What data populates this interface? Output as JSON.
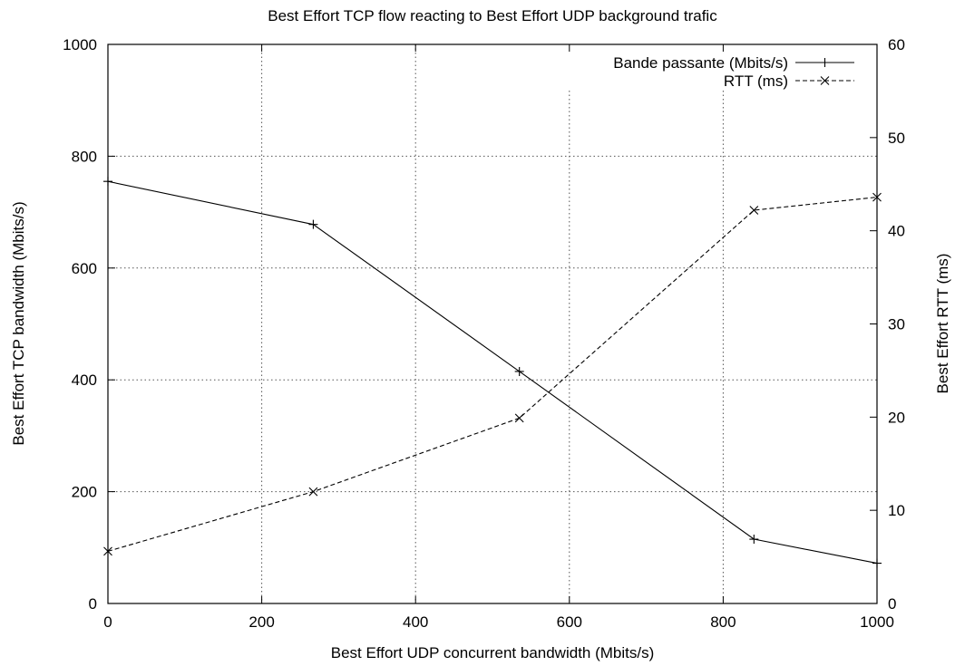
{
  "chart_data": {
    "type": "line",
    "title": "Best Effort TCP flow reacting to Best Effort UDP background trafic",
    "xlabel": "Best Effort UDP concurrent bandwidth (Mbits/s)",
    "ylabel": "Best Effort TCP bandwidth (Mbits/s)",
    "y2label": "Best Effort RTT (ms)",
    "xlim": [
      0,
      1000
    ],
    "ylim": [
      0,
      1000
    ],
    "y2lim": [
      0,
      60
    ],
    "xticks": [
      0,
      200,
      400,
      600,
      800,
      1000
    ],
    "yticks": [
      0,
      200,
      400,
      600,
      800,
      1000
    ],
    "y2ticks": [
      0,
      10,
      20,
      30,
      40,
      50,
      60
    ],
    "grid": true,
    "legend_position": "top-right",
    "series": [
      {
        "name": "Bande passante (Mbits/s)",
        "axis": "left",
        "style": "solid",
        "marker": "plus",
        "x": [
          0,
          267,
          535,
          840,
          1000
        ],
        "y": [
          755,
          678,
          415,
          115,
          72
        ]
      },
      {
        "name": "RTT (ms)",
        "axis": "right",
        "style": "dashed",
        "marker": "cross",
        "x": [
          0,
          267,
          535,
          840,
          1000
        ],
        "y": [
          5.6,
          12.0,
          19.9,
          42.2,
          43.6
        ]
      }
    ]
  }
}
